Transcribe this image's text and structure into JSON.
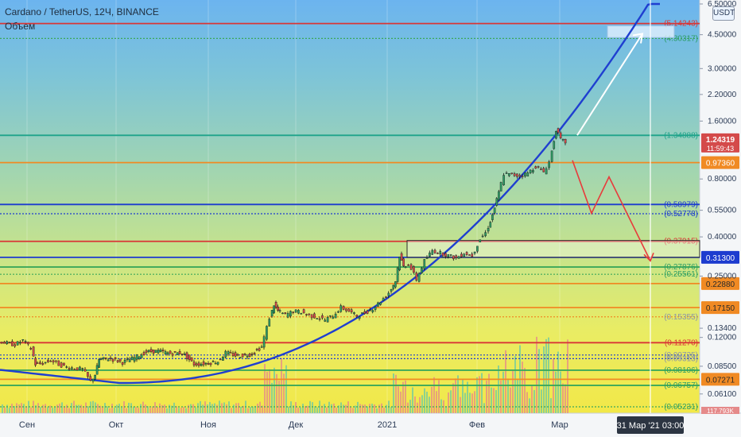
{
  "header": {
    "symbol": "Cardano / TetherUS, 12Ч, BINANCE",
    "volume_label": "Объем",
    "currency_button": "USDT"
  },
  "colors": {
    "price_up": "#2e9e66",
    "price_down": "#d44a4a",
    "volume_up": "#6cc8a4",
    "volume_down": "#e58a8a",
    "curve": "#1f3fd0",
    "arrow_up": "#ffffff",
    "arrow_down": "#e83b3b",
    "red_line": "#d93636",
    "orange_line": "#f08a24",
    "blue_line": "#1d3ccf",
    "teal_line": "#1ea38a",
    "green_line": "#3ba85a"
  },
  "price_axis": {
    "ticks": [
      "6.50000",
      "4.50000",
      "3.00000",
      "2.20000",
      "1.60000",
      "0.80000",
      "0.55000",
      "0.40000",
      "0.25000",
      "0.13400",
      "0.12000",
      "0.08500",
      "0.06100"
    ],
    "current_price": "1.24319",
    "countdown": "11:59:43"
  },
  "time_axis": {
    "labels": [
      "Сен",
      "Окт",
      "Ноя",
      "Дек",
      "2021",
      "Фев",
      "Мар"
    ],
    "crosshair_label": "31 Мар '21   03:00"
  },
  "levels": [
    {
      "label": "(5.14243)",
      "price": 5.14243,
      "color": "red",
      "style": "solid",
      "boxed": false,
      "label_color": "#d93636"
    },
    {
      "label": "(4.30317)",
      "price": 4.30317,
      "color": "green",
      "style": "dotted",
      "boxed": false,
      "label_color": "#2e9e66"
    },
    {
      "label": "(1.34888)",
      "price": 1.34888,
      "color": "teal",
      "style": "solid",
      "boxed": false,
      "label_color": "#1ea38a"
    },
    {
      "label": "0.97360",
      "price": 0.9736,
      "color": "orange",
      "style": "solid",
      "boxed": true,
      "label_color": "#ffffff"
    },
    {
      "label": "(0.58979)",
      "price": 0.58979,
      "color": "blue",
      "style": "solid",
      "boxed": false,
      "label_color": "#1d3ccf"
    },
    {
      "label": "(0.52778)",
      "price": 0.52778,
      "color": "blue",
      "style": "dotted",
      "boxed": false,
      "label_color": "#1d3ccf"
    },
    {
      "label": "(0.37915)",
      "price": 0.37915,
      "color": "red",
      "style": "solid",
      "boxed": false,
      "label_color": "#d93636"
    },
    {
      "label": "0.31300",
      "price": 0.313,
      "color": "blue",
      "style": "solid",
      "boxed": true,
      "label_color": "#ffffff"
    },
    {
      "label": "(0.27876)",
      "price": 0.27876,
      "color": "green",
      "style": "solid",
      "boxed": false,
      "label_color": "#2e9e66"
    },
    {
      "label": "(0.25561)",
      "price": 0.25561,
      "color": "green",
      "style": "dotted",
      "boxed": false,
      "label_color": "#2e9e66"
    },
    {
      "label": "0.22880",
      "price": 0.2288,
      "color": "orange",
      "style": "solid",
      "boxed": true,
      "label_color": "#2a2a2a"
    },
    {
      "label": "0.17150",
      "price": 0.1715,
      "color": "orange",
      "style": "solid",
      "boxed": true,
      "label_color": "#2a2a2a"
    },
    {
      "label": "(0.15355)",
      "price": 0.15355,
      "color": "orange",
      "style": "dotted",
      "boxed": false,
      "label_color": "#8b96a8"
    },
    {
      "label": "(0.11270)",
      "price": 0.1127,
      "color": "red",
      "style": "solid",
      "boxed": false,
      "label_color": "#d93636"
    },
    {
      "label": "(0.09725)",
      "price": 0.09725,
      "color": "blue",
      "style": "dotted",
      "boxed": false,
      "label_color": "#8b96a8"
    },
    {
      "label": "(0.09313)",
      "price": 0.09313,
      "color": "blue",
      "style": "dotted",
      "boxed": false,
      "label_color": "#8b96a8"
    },
    {
      "label": "(0.08106)",
      "price": 0.08106,
      "color": "green",
      "style": "solid",
      "boxed": false,
      "label_color": "#2e9e66"
    },
    {
      "label": "0.07271",
      "price": 0.07271,
      "color": "orange",
      "style": "solid",
      "boxed": true,
      "label_color": "#2a2a2a"
    },
    {
      "label": "(0.06757)",
      "price": 0.06757,
      "color": "green",
      "style": "solid",
      "boxed": false,
      "label_color": "#2e9e66"
    },
    {
      "label": "(0.05231)",
      "price": 0.05231,
      "color": "green",
      "style": "dotted",
      "boxed": false,
      "label_color": "#2e9e66"
    }
  ],
  "volume_tag": "117.793K",
  "price_series": [
    [
      0,
      0.115
    ],
    [
      10,
      0.112
    ],
    [
      20,
      0.11
    ],
    [
      30,
      0.116
    ],
    [
      40,
      0.105
    ],
    [
      45,
      0.087
    ],
    [
      55,
      0.088
    ],
    [
      65,
      0.091
    ],
    [
      75,
      0.087
    ],
    [
      85,
      0.084
    ],
    [
      95,
      0.083
    ],
    [
      105,
      0.082
    ],
    [
      115,
      0.071
    ],
    [
      120,
      0.077
    ],
    [
      125,
      0.092
    ],
    [
      140,
      0.093
    ],
    [
      155,
      0.089
    ],
    [
      170,
      0.094
    ],
    [
      185,
      0.101
    ],
    [
      200,
      0.102
    ],
    [
      215,
      0.099
    ],
    [
      230,
      0.1
    ],
    [
      245,
      0.087
    ],
    [
      260,
      0.088
    ],
    [
      275,
      0.09
    ],
    [
      285,
      0.1
    ],
    [
      300,
      0.096
    ],
    [
      315,
      0.098
    ],
    [
      330,
      0.107
    ],
    [
      340,
      0.152
    ],
    [
      345,
      0.178
    ],
    [
      350,
      0.165
    ],
    [
      360,
      0.157
    ],
    [
      370,
      0.164
    ],
    [
      380,
      0.163
    ],
    [
      390,
      0.156
    ],
    [
      400,
      0.153
    ],
    [
      410,
      0.148
    ],
    [
      420,
      0.156
    ],
    [
      430,
      0.172
    ],
    [
      440,
      0.164
    ],
    [
      450,
      0.155
    ],
    [
      460,
      0.161
    ],
    [
      470,
      0.17
    ],
    [
      480,
      0.185
    ],
    [
      490,
      0.205
    ],
    [
      498,
      0.236
    ],
    [
      503,
      0.32
    ],
    [
      508,
      0.28
    ],
    [
      515,
      0.29
    ],
    [
      525,
      0.24
    ],
    [
      535,
      0.3
    ],
    [
      545,
      0.34
    ],
    [
      555,
      0.33
    ],
    [
      565,
      0.32
    ],
    [
      575,
      0.31
    ],
    [
      585,
      0.33
    ],
    [
      595,
      0.32
    ],
    [
      605,
      0.39
    ],
    [
      612,
      0.42
    ],
    [
      620,
      0.52
    ],
    [
      628,
      0.68
    ],
    [
      635,
      0.85
    ],
    [
      645,
      0.84
    ],
    [
      655,
      0.83
    ],
    [
      665,
      0.86
    ],
    [
      675,
      0.93
    ],
    [
      685,
      0.87
    ],
    [
      692,
      0.98
    ],
    [
      700,
      1.45
    ],
    [
      706,
      1.28
    ],
    [
      712,
      1.24319
    ]
  ],
  "annotations": {
    "target_box": {
      "price_top": 5.0,
      "price_bottom": 4.35
    },
    "range_box": {
      "price_top": 0.383,
      "price_bottom": 0.313
    },
    "up_arrow_from": 1.35,
    "up_arrow_to": 4.55,
    "down_arrow_points": [
      1.0,
      0.53,
      0.82,
      0.3
    ]
  }
}
